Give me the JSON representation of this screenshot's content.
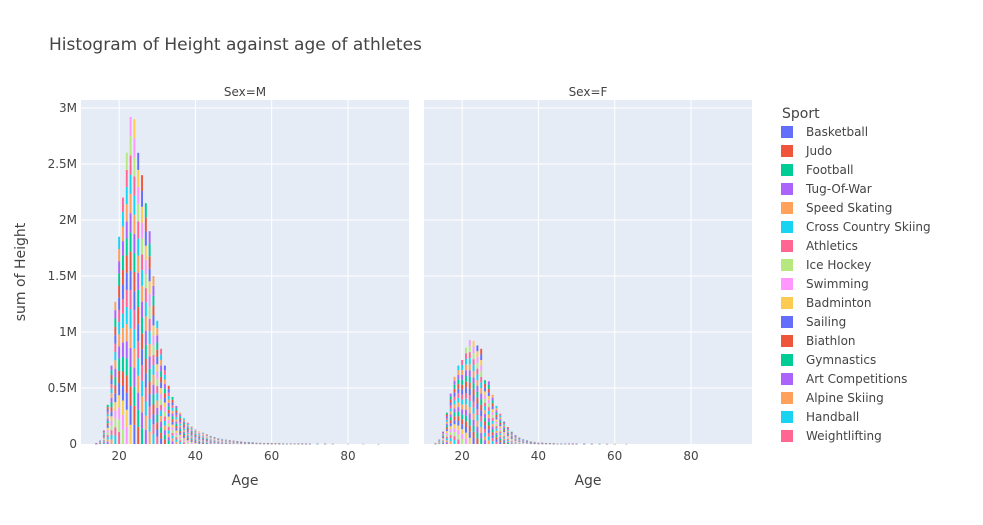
{
  "chart_data": {
    "type": "bar",
    "title": "Histogram of Height against age of athletes",
    "xlabel": "Age",
    "ylabel": "sum of Height",
    "barmode": "stack",
    "legend": {
      "title": "Sport",
      "placement": "right"
    },
    "xlim": [
      10,
      96
    ],
    "ylim": [
      0,
      3000000
    ],
    "x_ticks": [
      20,
      40,
      60,
      80
    ],
    "y_ticks": [
      {
        "value": 0,
        "label": "0"
      },
      {
        "value": 500000,
        "label": "0.5M"
      },
      {
        "value": 1000000,
        "label": "1M"
      },
      {
        "value": 1500000,
        "label": "1.5M"
      },
      {
        "value": 2000000,
        "label": "2M"
      },
      {
        "value": 2500000,
        "label": "2.5M"
      },
      {
        "value": 3000000,
        "label": "3M"
      }
    ],
    "series": [
      {
        "name": "Basketball",
        "color": "#636efa"
      },
      {
        "name": "Judo",
        "color": "#EF553B"
      },
      {
        "name": "Football",
        "color": "#00cc96"
      },
      {
        "name": "Tug-Of-War",
        "color": "#ab63fa"
      },
      {
        "name": "Speed Skating",
        "color": "#FFA15A"
      },
      {
        "name": "Cross Country Skiing",
        "color": "#19d3f3"
      },
      {
        "name": "Athletics",
        "color": "#FF6692"
      },
      {
        "name": "Ice Hockey",
        "color": "#B6E880"
      },
      {
        "name": "Swimming",
        "color": "#FF97FF"
      },
      {
        "name": "Badminton",
        "color": "#FECB52"
      },
      {
        "name": "Sailing",
        "color": "#636efa"
      },
      {
        "name": "Biathlon",
        "color": "#EF553B"
      },
      {
        "name": "Gymnastics",
        "color": "#00cc96"
      },
      {
        "name": "Art Competitions",
        "color": "#ab63fa"
      },
      {
        "name": "Alpine Skiing",
        "color": "#FFA15A"
      },
      {
        "name": "Handball",
        "color": "#19d3f3"
      },
      {
        "name": "Weightlifting",
        "color": "#FF6692"
      }
    ],
    "facets": [
      {
        "label": "Sex=M",
        "totals": [
          {
            "x": 14,
            "y": 8000
          },
          {
            "x": 15,
            "y": 30000
          },
          {
            "x": 16,
            "y": 120000
          },
          {
            "x": 17,
            "y": 350000
          },
          {
            "x": 18,
            "y": 700000
          },
          {
            "x": 19,
            "y": 1270000
          },
          {
            "x": 20,
            "y": 1850000
          },
          {
            "x": 21,
            "y": 2200000
          },
          {
            "x": 22,
            "y": 2600000
          },
          {
            "x": 23,
            "y": 2920000
          },
          {
            "x": 24,
            "y": 2900000
          },
          {
            "x": 25,
            "y": 2600000
          },
          {
            "x": 26,
            "y": 2400000
          },
          {
            "x": 27,
            "y": 2150000
          },
          {
            "x": 28,
            "y": 1900000
          },
          {
            "x": 29,
            "y": 1500000
          },
          {
            "x": 30,
            "y": 1100000
          },
          {
            "x": 31,
            "y": 850000
          },
          {
            "x": 32,
            "y": 700000
          },
          {
            "x": 33,
            "y": 520000
          },
          {
            "x": 34,
            "y": 420000
          },
          {
            "x": 35,
            "y": 340000
          },
          {
            "x": 36,
            "y": 280000
          },
          {
            "x": 37,
            "y": 230000
          },
          {
            "x": 38,
            "y": 190000
          },
          {
            "x": 39,
            "y": 160000
          },
          {
            "x": 40,
            "y": 135000
          },
          {
            "x": 41,
            "y": 115000
          },
          {
            "x": 42,
            "y": 100000
          },
          {
            "x": 43,
            "y": 85000
          },
          {
            "x": 44,
            "y": 72000
          },
          {
            "x": 45,
            "y": 62000
          },
          {
            "x": 46,
            "y": 53000
          },
          {
            "x": 47,
            "y": 46000
          },
          {
            "x": 48,
            "y": 40000
          },
          {
            "x": 49,
            "y": 34000
          },
          {
            "x": 50,
            "y": 30000
          },
          {
            "x": 51,
            "y": 26000
          },
          {
            "x": 52,
            "y": 22000
          },
          {
            "x": 53,
            "y": 19000
          },
          {
            "x": 54,
            "y": 17000
          },
          {
            "x": 55,
            "y": 15000
          },
          {
            "x": 56,
            "y": 13000
          },
          {
            "x": 57,
            "y": 11000
          },
          {
            "x": 58,
            "y": 10000
          },
          {
            "x": 59,
            "y": 9000
          },
          {
            "x": 60,
            "y": 8000
          },
          {
            "x": 61,
            "y": 7000
          },
          {
            "x": 62,
            "y": 6000
          },
          {
            "x": 63,
            "y": 5000
          },
          {
            "x": 64,
            "y": 4500
          },
          {
            "x": 65,
            "y": 4000
          },
          {
            "x": 66,
            "y": 3500
          },
          {
            "x": 67,
            "y": 3000
          },
          {
            "x": 68,
            "y": 2500
          },
          {
            "x": 69,
            "y": 2000
          },
          {
            "x": 70,
            "y": 1800
          },
          {
            "x": 72,
            "y": 1200
          },
          {
            "x": 74,
            "y": 800
          },
          {
            "x": 76,
            "y": 500
          },
          {
            "x": 80,
            "y": 300
          },
          {
            "x": 84,
            "y": 200
          },
          {
            "x": 88,
            "y": 100
          }
        ]
      },
      {
        "label": "Sex=F",
        "totals": [
          {
            "x": 13,
            "y": 10000
          },
          {
            "x": 14,
            "y": 40000
          },
          {
            "x": 15,
            "y": 110000
          },
          {
            "x": 16,
            "y": 280000
          },
          {
            "x": 17,
            "y": 450000
          },
          {
            "x": 18,
            "y": 600000
          },
          {
            "x": 19,
            "y": 700000
          },
          {
            "x": 20,
            "y": 750000
          },
          {
            "x": 21,
            "y": 860000
          },
          {
            "x": 22,
            "y": 930000
          },
          {
            "x": 23,
            "y": 920000
          },
          {
            "x": 24,
            "y": 880000
          },
          {
            "x": 25,
            "y": 850000
          },
          {
            "x": 26,
            "y": 570000
          },
          {
            "x": 27,
            "y": 560000
          },
          {
            "x": 28,
            "y": 440000
          },
          {
            "x": 29,
            "y": 340000
          },
          {
            "x": 30,
            "y": 270000
          },
          {
            "x": 31,
            "y": 200000
          },
          {
            "x": 32,
            "y": 150000
          },
          {
            "x": 33,
            "y": 110000
          },
          {
            "x": 34,
            "y": 80000
          },
          {
            "x": 35,
            "y": 60000
          },
          {
            "x": 36,
            "y": 45000
          },
          {
            "x": 37,
            "y": 34000
          },
          {
            "x": 38,
            "y": 26000
          },
          {
            "x": 39,
            "y": 20000
          },
          {
            "x": 40,
            "y": 15000
          },
          {
            "x": 41,
            "y": 12000
          },
          {
            "x": 42,
            "y": 9000
          },
          {
            "x": 43,
            "y": 7000
          },
          {
            "x": 44,
            "y": 5500
          },
          {
            "x": 45,
            "y": 4500
          },
          {
            "x": 46,
            "y": 3500
          },
          {
            "x": 47,
            "y": 3000
          },
          {
            "x": 48,
            "y": 2500
          },
          {
            "x": 49,
            "y": 2000
          },
          {
            "x": 50,
            "y": 1500
          },
          {
            "x": 52,
            "y": 1000
          },
          {
            "x": 54,
            "y": 700
          },
          {
            "x": 56,
            "y": 400
          },
          {
            "x": 58,
            "y": 300
          },
          {
            "x": 60,
            "y": 200
          },
          {
            "x": 63,
            "y": 100
          }
        ]
      }
    ]
  }
}
